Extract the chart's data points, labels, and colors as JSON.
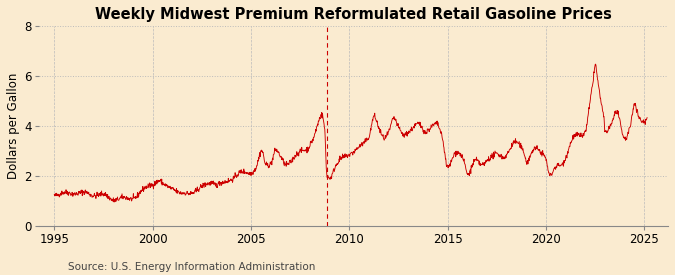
{
  "title": "Weekly Midwest Premium Reformulated Retail Gasoline Prices",
  "ylabel": "Dollars per Gallon",
  "source": "Source: U.S. Energy Information Administration",
  "xlim": [
    1994.2,
    2026.2
  ],
  "ylim": [
    0,
    8
  ],
  "yticks": [
    0,
    2,
    4,
    6,
    8
  ],
  "xticks": [
    1995,
    2000,
    2005,
    2010,
    2015,
    2020,
    2025
  ],
  "line_color": "#cc0000",
  "background_color": "#faebd0",
  "grid_color": "#bbbbbb",
  "title_fontsize": 10.5,
  "label_fontsize": 8.5,
  "source_fontsize": 7.5,
  "dashed_line_x": 2008.85,
  "anchors": [
    [
      1995.0,
      1.3
    ],
    [
      1995.5,
      1.28
    ],
    [
      1996.0,
      1.35
    ],
    [
      1996.5,
      1.3
    ],
    [
      1997.0,
      1.28
    ],
    [
      1997.5,
      1.22
    ],
    [
      1998.0,
      1.1
    ],
    [
      1998.5,
      1.08
    ],
    [
      1999.0,
      1.15
    ],
    [
      1999.5,
      1.4
    ],
    [
      2000.0,
      1.72
    ],
    [
      2000.3,
      1.8
    ],
    [
      2000.6,
      1.6
    ],
    [
      2001.0,
      1.55
    ],
    [
      2001.5,
      1.25
    ],
    [
      2002.0,
      1.38
    ],
    [
      2002.5,
      1.52
    ],
    [
      2003.0,
      1.78
    ],
    [
      2003.3,
      1.65
    ],
    [
      2003.6,
      1.7
    ],
    [
      2004.0,
      1.92
    ],
    [
      2004.5,
      2.1
    ],
    [
      2005.0,
      2.18
    ],
    [
      2005.25,
      2.35
    ],
    [
      2005.55,
      2.95
    ],
    [
      2005.75,
      2.45
    ],
    [
      2006.0,
      2.55
    ],
    [
      2006.25,
      3.05
    ],
    [
      2006.5,
      2.72
    ],
    [
      2006.75,
      2.45
    ],
    [
      2007.0,
      2.62
    ],
    [
      2007.3,
      2.85
    ],
    [
      2007.6,
      2.95
    ],
    [
      2007.9,
      3.15
    ],
    [
      2008.0,
      3.32
    ],
    [
      2008.2,
      3.6
    ],
    [
      2008.4,
      4.05
    ],
    [
      2008.6,
      4.38
    ],
    [
      2008.75,
      3.8
    ],
    [
      2008.85,
      2.1
    ],
    [
      2009.0,
      1.98
    ],
    [
      2009.3,
      2.4
    ],
    [
      2009.6,
      2.65
    ],
    [
      2010.0,
      2.92
    ],
    [
      2010.4,
      3.05
    ],
    [
      2011.0,
      3.65
    ],
    [
      2011.25,
      4.4
    ],
    [
      2011.5,
      3.85
    ],
    [
      2011.75,
      3.5
    ],
    [
      2012.0,
      3.82
    ],
    [
      2012.25,
      4.32
    ],
    [
      2012.5,
      3.88
    ],
    [
      2012.75,
      3.62
    ],
    [
      2013.0,
      3.82
    ],
    [
      2013.5,
      4.02
    ],
    [
      2013.9,
      3.78
    ],
    [
      2014.0,
      3.92
    ],
    [
      2014.4,
      4.05
    ],
    [
      2014.75,
      3.4
    ],
    [
      2014.95,
      2.5
    ],
    [
      2015.0,
      2.42
    ],
    [
      2015.4,
      2.88
    ],
    [
      2015.7,
      2.78
    ],
    [
      2015.95,
      2.28
    ],
    [
      2016.0,
      2.12
    ],
    [
      2016.4,
      2.58
    ],
    [
      2016.7,
      2.42
    ],
    [
      2016.95,
      2.62
    ],
    [
      2017.0,
      2.72
    ],
    [
      2017.5,
      2.82
    ],
    [
      2017.8,
      2.75
    ],
    [
      2018.0,
      2.92
    ],
    [
      2018.4,
      3.32
    ],
    [
      2018.7,
      3.15
    ],
    [
      2018.95,
      2.82
    ],
    [
      2019.0,
      2.62
    ],
    [
      2019.4,
      3.05
    ],
    [
      2019.7,
      2.95
    ],
    [
      2019.95,
      2.82
    ],
    [
      2020.0,
      2.72
    ],
    [
      2020.2,
      2.05
    ],
    [
      2020.5,
      2.32
    ],
    [
      2020.8,
      2.45
    ],
    [
      2021.0,
      2.82
    ],
    [
      2021.4,
      3.52
    ],
    [
      2021.8,
      3.62
    ],
    [
      2022.0,
      3.85
    ],
    [
      2022.2,
      4.8
    ],
    [
      2022.4,
      5.85
    ],
    [
      2022.5,
      6.38
    ],
    [
      2022.65,
      5.6
    ],
    [
      2022.8,
      4.95
    ],
    [
      2022.95,
      4.25
    ],
    [
      2023.0,
      3.82
    ],
    [
      2023.3,
      4.05
    ],
    [
      2023.6,
      4.52
    ],
    [
      2023.85,
      3.82
    ],
    [
      2024.0,
      3.55
    ],
    [
      2024.3,
      4.05
    ],
    [
      2024.5,
      4.85
    ],
    [
      2024.7,
      4.35
    ],
    [
      2024.9,
      4.22
    ],
    [
      2025.1,
      4.32
    ]
  ]
}
